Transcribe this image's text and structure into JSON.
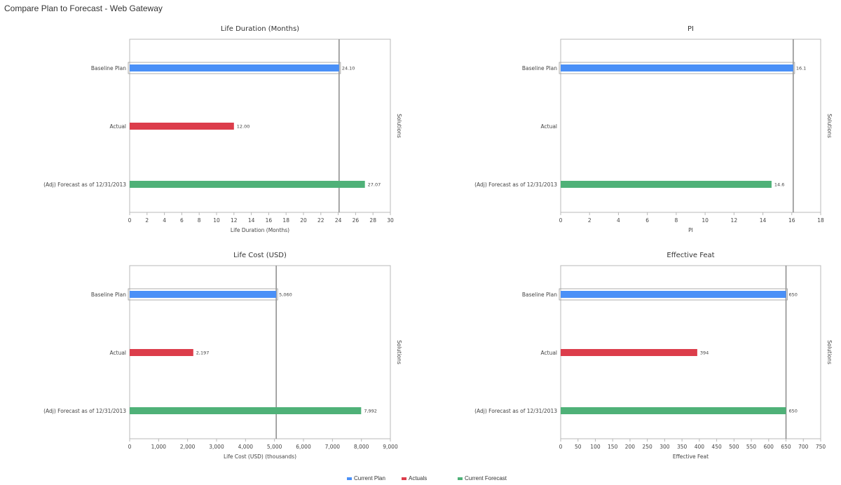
{
  "page": {
    "title": "Compare Plan to Forecast - Web Gateway"
  },
  "colors": {
    "current_plan": "#4a90f7",
    "actuals": "#dc3d4b",
    "current_forecast": "#4fb178",
    "reference_line": "#8a8a8a",
    "axis": "#b8b8b8",
    "text": "#444444"
  },
  "legend": [
    {
      "label": "Current Plan",
      "color": "#4a90f7"
    },
    {
      "label": "Actuals",
      "color": "#dc3d4b"
    },
    {
      "label": "Current Forecast",
      "color": "#4fb178"
    }
  ],
  "chart_data": [
    {
      "type": "bar",
      "orientation": "horizontal",
      "title": "Life Duration (Months)",
      "xlabel": "Life Duration (Months)",
      "ylabel": "Solutions",
      "categories": [
        "Baseline Plan",
        "Actual",
        "(Adj) Forecast as of 12/31/2013"
      ],
      "values": [
        24.1,
        12.0,
        27.07
      ],
      "value_labels": [
        "24.10",
        "12.00",
        "27.07"
      ],
      "xlim": [
        0,
        30
      ],
      "xticks": [
        0,
        2,
        4,
        6,
        8,
        10,
        12,
        14,
        16,
        18,
        20,
        22,
        24,
        26,
        28,
        30
      ],
      "xtick_labels": [
        "0",
        "2",
        "4",
        "6",
        "8",
        "10",
        "12",
        "14",
        "16",
        "18",
        "20",
        "22",
        "24",
        "26",
        "28",
        "30"
      ],
      "reference_line": 24.1,
      "grid": false
    },
    {
      "type": "bar",
      "orientation": "horizontal",
      "title": "PI",
      "xlabel": "PI",
      "ylabel": "Solutions",
      "categories": [
        "Baseline Plan",
        "Actual",
        "(Adj) Forecast as of 12/31/2013"
      ],
      "values": [
        16.1,
        null,
        14.6
      ],
      "value_labels": [
        "16.1",
        "",
        "14.6"
      ],
      "xlim": [
        0,
        18
      ],
      "xticks": [
        0,
        2,
        4,
        6,
        8,
        10,
        12,
        14,
        16,
        18
      ],
      "xtick_labels": [
        "0",
        "2",
        "4",
        "6",
        "8",
        "10",
        "12",
        "14",
        "16",
        "18"
      ],
      "reference_line": 16.1,
      "grid": false
    },
    {
      "type": "bar",
      "orientation": "horizontal",
      "title": "Life Cost (USD)",
      "xlabel": "Life Cost (USD) (thousands)",
      "ylabel": "Solutions",
      "categories": [
        "Baseline Plan",
        "Actual",
        "(Adj) Forecast as of 12/31/2013"
      ],
      "values": [
        5060,
        2197,
        7992
      ],
      "value_labels": [
        "5,060",
        "2,197",
        "7,992"
      ],
      "xlim": [
        0,
        9000
      ],
      "xticks": [
        0,
        1000,
        2000,
        3000,
        4000,
        5000,
        6000,
        7000,
        8000,
        9000
      ],
      "xtick_labels": [
        "0",
        "1,000",
        "2,000",
        "3,000",
        "4,000",
        "5,000",
        "6,000",
        "7,000",
        "8,000",
        "9,000"
      ],
      "reference_line": 5060,
      "grid": false
    },
    {
      "type": "bar",
      "orientation": "horizontal",
      "title": "Effective Feat",
      "xlabel": "Effective Feat",
      "ylabel": "Solutions",
      "categories": [
        "Baseline Plan",
        "Actual",
        "(Adj) Forecast as of 12/31/2013"
      ],
      "values": [
        650,
        394,
        650
      ],
      "value_labels": [
        "650",
        "394",
        "650"
      ],
      "xlim": [
        0,
        750
      ],
      "xticks": [
        0,
        50,
        100,
        150,
        200,
        250,
        300,
        350,
        400,
        450,
        500,
        550,
        600,
        650,
        700,
        750
      ],
      "xtick_labels": [
        "0",
        "50",
        "100",
        "150",
        "200",
        "250",
        "300",
        "350",
        "400",
        "450",
        "500",
        "550",
        "600",
        "650",
        "700",
        "750"
      ],
      "reference_line": 650,
      "grid": false
    }
  ]
}
